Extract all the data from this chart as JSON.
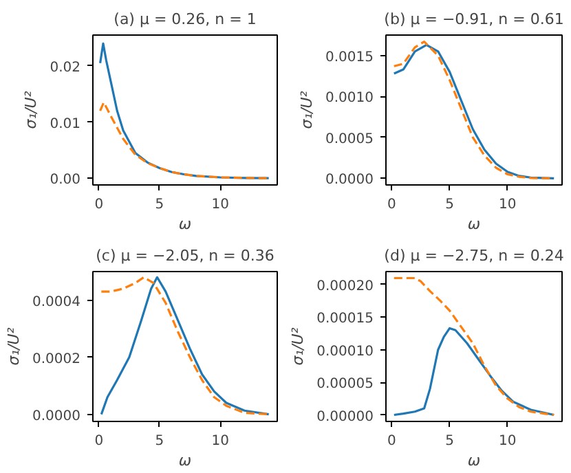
{
  "chart_data": [
    {
      "type": "line",
      "title": "(a) μ = 0.26, n = 1",
      "xlabel": "ω",
      "ylabel": "σ₁/U²",
      "xlim": [
        -0.5,
        14.7
      ],
      "ylim": [
        -0.0012,
        0.0255
      ],
      "xticks": [
        0,
        5,
        10
      ],
      "yticks": [
        {
          "value": 0,
          "label": "0.00"
        },
        {
          "value": 0.01,
          "label": "0.01"
        },
        {
          "value": 0.02,
          "label": "0.02"
        }
      ],
      "series": [
        {
          "color": "#1f77b4",
          "line_style": "solid",
          "x": [
            0.1,
            0.35,
            0.6,
            1,
            1.5,
            2,
            3,
            4,
            5,
            6,
            7,
            8,
            10,
            12,
            14
          ],
          "values": [
            0.0205,
            0.024,
            0.021,
            0.017,
            0.012,
            0.0085,
            0.0045,
            0.0028,
            0.0018,
            0.0011,
            0.0007,
            0.0004,
            0.00015,
            5e-05,
            0
          ]
        },
        {
          "color": "#ff7f0e",
          "line_style": "dashed",
          "x": [
            0.1,
            0.4,
            1,
            1.5,
            2,
            3,
            4,
            5,
            6,
            7,
            8,
            10,
            12,
            14
          ],
          "values": [
            0.012,
            0.0135,
            0.011,
            0.009,
            0.007,
            0.0042,
            0.0027,
            0.0018,
            0.0011,
            0.0007,
            0.0004,
            0.00015,
            5e-05,
            0
          ]
        }
      ]
    },
    {
      "type": "line",
      "title": "(b) μ = −0.91, n = 0.61",
      "xlabel": "ω",
      "ylabel": "σ₁/U²",
      "xlim": [
        -0.5,
        14.7
      ],
      "ylim": [
        -8e-05,
        0.00175
      ],
      "xticks": [
        0,
        5,
        10
      ],
      "yticks": [
        {
          "value": 0,
          "label": "0.0000"
        },
        {
          "value": 0.0005,
          "label": "0.0005"
        },
        {
          "value": 0.001,
          "label": "0.0010"
        },
        {
          "value": 0.0015,
          "label": "0.0015"
        }
      ],
      "series": [
        {
          "color": "#1f77b4",
          "line_style": "solid",
          "x": [
            0.2,
            1,
            2,
            3,
            4,
            5,
            6,
            7,
            8,
            9,
            10,
            11,
            12,
            14
          ],
          "values": [
            0.00128,
            0.00133,
            0.00155,
            0.00163,
            0.00155,
            0.0013,
            0.00095,
            0.0006,
            0.00035,
            0.00018,
            8e-05,
            3e-05,
            1e-05,
            0
          ]
        },
        {
          "color": "#ff7f0e",
          "line_style": "dashed",
          "x": [
            0.2,
            1,
            2,
            2.8,
            4,
            5,
            6,
            7,
            8,
            9,
            10,
            11,
            12,
            14
          ],
          "values": [
            0.00137,
            0.0014,
            0.0016,
            0.00167,
            0.0015,
            0.0012,
            0.00085,
            0.0005,
            0.00028,
            0.00013,
            5e-05,
            2e-05,
            5e-06,
            0
          ]
        }
      ]
    },
    {
      "type": "line",
      "title": "(c) μ = −2.05, n = 0.36",
      "xlabel": "ω",
      "ylabel": "σ₁/U²",
      "xlim": [
        -0.5,
        14.7
      ],
      "ylim": [
        -2.5e-05,
        0.0005
      ],
      "xticks": [
        0,
        5,
        10
      ],
      "yticks": [
        {
          "value": 0,
          "label": "0.0000"
        },
        {
          "value": 0.0002,
          "label": "0.0002"
        },
        {
          "value": 0.0004,
          "label": "0.0004"
        }
      ],
      "series": [
        {
          "color": "#1f77b4",
          "line_style": "solid",
          "x": [
            0.2,
            0.7,
            1.5,
            2.5,
            3.5,
            4.3,
            4.8,
            5.5,
            6.5,
            7.5,
            8.5,
            9.5,
            10.5,
            12,
            14
          ],
          "values": [
            0,
            6e-05,
            0.00012,
            0.0002,
            0.00033,
            0.00044,
            0.00048,
            0.00043,
            0.00033,
            0.00023,
            0.00014,
            8e-05,
            4e-05,
            1.3e-05,
            0
          ]
        },
        {
          "color": "#ff7f0e",
          "line_style": "dashed",
          "x": [
            0.2,
            1,
            2,
            3,
            3.7,
            4.5,
            5.5,
            6.5,
            7.5,
            8.5,
            9.5,
            10.5,
            12,
            14
          ],
          "values": [
            0.00043,
            0.00043,
            0.00044,
            0.00046,
            0.00048,
            0.00046,
            0.00039,
            0.00029,
            0.0002,
            0.00012,
            6e-05,
            3e-05,
            5e-06,
            0
          ]
        }
      ]
    },
    {
      "type": "line",
      "title": "(d) μ = −2.75, n = 0.24",
      "xlabel": "ω",
      "ylabel": "σ₁/U²",
      "xlim": [
        -0.5,
        14.7
      ],
      "ylim": [
        -1e-05,
        0.00022
      ],
      "xticks": [
        0,
        5,
        10
      ],
      "yticks": [
        {
          "value": 0,
          "label": "0.00000"
        },
        {
          "value": 5e-05,
          "label": "0.00005"
        },
        {
          "value": 0.0001,
          "label": "0.00010"
        },
        {
          "value": 0.00015,
          "label": "0.00015"
        },
        {
          "value": 0.0002,
          "label": "0.00020"
        }
      ],
      "series": [
        {
          "color": "#1f77b4",
          "line_style": "solid",
          "x": [
            0.2,
            1,
            2,
            2.8,
            3.3,
            4,
            4.5,
            5,
            5.5,
            6.5,
            7.5,
            8.5,
            9.5,
            10.5,
            12,
            14
          ],
          "values": [
            0,
            2e-06,
            5e-06,
            1e-05,
            4e-05,
            0.0001,
            0.00012,
            0.000133,
            0.00013,
            0.00011,
            8.5e-05,
            6e-05,
            3.7e-05,
            2e-05,
            8e-06,
            0
          ]
        },
        {
          "color": "#ff7f0e",
          "line_style": "dashed",
          "x": [
            0.2,
            1,
            2,
            2.5,
            3.3,
            4.2,
            5,
            6,
            7,
            8,
            9,
            10,
            11,
            12,
            14
          ],
          "values": [
            0.00021,
            0.00021,
            0.00021,
            0.000205,
            0.00019,
            0.000175,
            0.00016,
            0.000135,
            0.00011,
            7.5e-05,
            4.5e-05,
            2.5e-05,
            1.2e-05,
            5e-06,
            0
          ]
        }
      ]
    }
  ]
}
